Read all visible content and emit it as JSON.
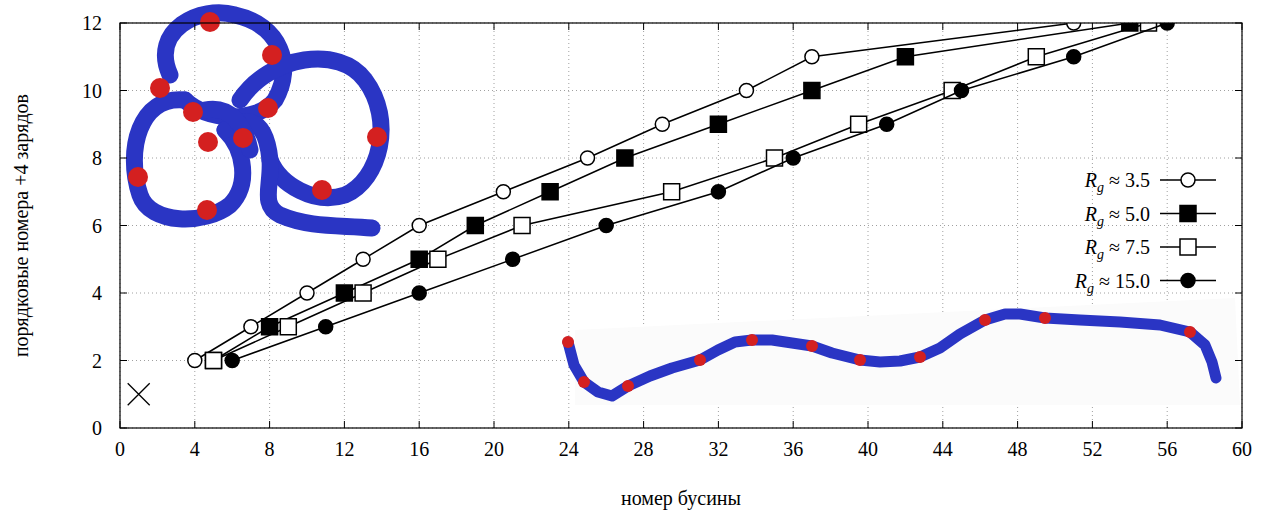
{
  "chart_data": {
    "type": "line",
    "x_label": "номер бусины",
    "y_label": "порядковые номера +4 зарядов",
    "xlim": [
      0,
      60
    ],
    "ylim": [
      0,
      12
    ],
    "xticks": [
      0,
      4,
      8,
      12,
      16,
      20,
      24,
      28,
      32,
      36,
      40,
      44,
      48,
      52,
      56,
      60
    ],
    "yticks": [
      0,
      2,
      4,
      6,
      8,
      10,
      12
    ],
    "grid": true,
    "legend": "right",
    "series": [
      {
        "name": "Rg ≈ 3.5",
        "color": "#000000",
        "marker": "circle-open",
        "line_style": "solid",
        "x": [
          4,
          7,
          10,
          13,
          16,
          20.5,
          25,
          29,
          33.5,
          37,
          51
        ],
        "values": [
          2,
          3,
          4,
          5,
          6,
          7,
          8,
          9,
          10,
          11,
          12
        ]
      },
      {
        "name": "Rg ≈ 5.0",
        "color": "#000000",
        "marker": "square",
        "line_style": "solid",
        "x": [
          5,
          8,
          12,
          16,
          19,
          23,
          27,
          32,
          37,
          42,
          54
        ],
        "values": [
          2,
          3,
          4,
          5,
          6,
          7,
          8,
          9,
          10,
          11,
          12
        ]
      },
      {
        "name": "Rg ≈ 7.5",
        "color": "#000000",
        "marker": "square-open",
        "line_style": "solid",
        "x": [
          5,
          9,
          13,
          17,
          21.5,
          29.5,
          35,
          39.5,
          44.5,
          49,
          55
        ],
        "values": [
          2,
          3,
          4,
          5,
          6,
          7,
          8,
          9,
          10,
          11,
          12
        ]
      },
      {
        "name": "Rg ≈ 15.0",
        "color": "#000000",
        "marker": "circle",
        "line_style": "solid",
        "x": [
          6,
          11,
          16,
          21,
          26,
          32,
          36,
          41,
          45,
          51,
          56
        ],
        "values": [
          2,
          3,
          4,
          5,
          6,
          7,
          8,
          9,
          10,
          11,
          12
        ]
      },
      {
        "name": null,
        "type": "scatter",
        "color": "#000000",
        "marker": "cross",
        "x": [
          1
        ],
        "values": [
          1
        ]
      }
    ]
  }
}
